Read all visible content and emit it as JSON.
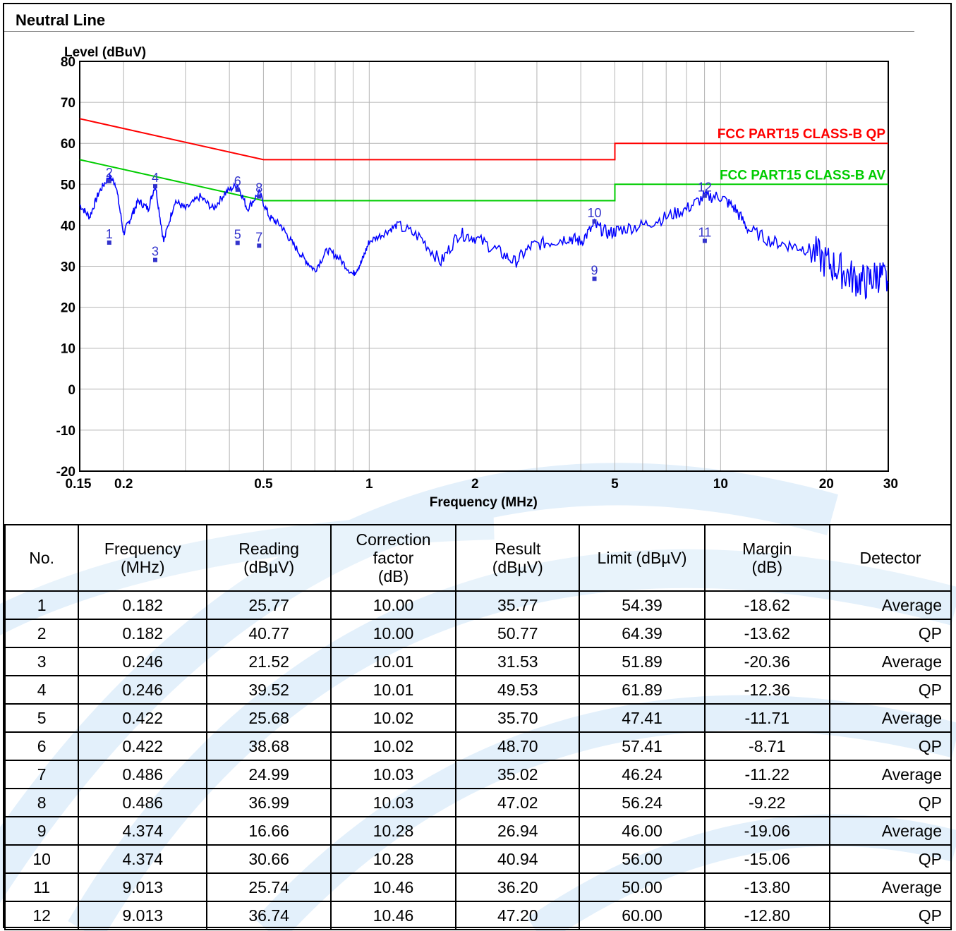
{
  "header": {
    "title": "Neutral Line"
  },
  "chart_data": {
    "type": "line",
    "title": "",
    "ylabel": "Level (dBuV)",
    "xlabel": "Frequency (MHz)",
    "xscale": "log",
    "xlim": [
      0.15,
      30
    ],
    "ylim": [
      -20,
      80
    ],
    "xticks": [
      0.15,
      0.2,
      0.5,
      1,
      2,
      5,
      10,
      20,
      30
    ],
    "xtick_labels": [
      "0.15",
      "0.2",
      "0.5",
      "1",
      "2",
      "5",
      "10",
      "20",
      "30"
    ],
    "yticks": [
      80,
      70,
      60,
      50,
      40,
      30,
      20,
      10,
      0,
      -10,
      -20
    ],
    "ytick_labels": [
      "80",
      "70",
      "60",
      "50",
      "40",
      "30",
      "20",
      "10",
      "0",
      "-10",
      "-20"
    ],
    "grid": true,
    "colors": {
      "qp_limit": "#ff0000",
      "av_limit": "#00cc00",
      "trace": "#0000ff",
      "markers": "#3333cc"
    },
    "series": [
      {
        "name": "FCC PART15 CLASS-B QP",
        "x": [
          0.15,
          0.5,
          0.5,
          5,
          5,
          30
        ],
        "y": [
          66,
          56,
          56,
          56,
          60,
          60
        ]
      },
      {
        "name": "FCC PART15 CLASS-B AV",
        "x": [
          0.15,
          0.5,
          0.5,
          5,
          5,
          30
        ],
        "y": [
          56,
          46,
          46,
          46,
          50,
          50
        ]
      },
      {
        "name": "",
        "x": [
          0.15,
          0.16,
          0.17,
          0.182,
          0.19,
          0.2,
          0.21,
          0.22,
          0.235,
          0.246,
          0.26,
          0.28,
          0.3,
          0.33,
          0.36,
          0.39,
          0.422,
          0.45,
          0.486,
          0.52,
          0.56,
          0.6,
          0.65,
          0.7,
          0.76,
          0.82,
          0.9,
          0.95,
          1.0,
          1.1,
          1.2,
          1.4,
          1.6,
          1.8,
          2.0,
          2.3,
          2.6,
          2.9,
          3.3,
          3.7,
          4.0,
          4.374,
          4.8,
          5.2,
          6.0,
          7.0,
          8.0,
          9.013,
          10.0,
          11.0,
          12.0,
          14.0,
          16.0,
          18.0,
          20.0,
          22.0,
          24.0,
          26.0,
          28.0,
          30.0
        ],
        "y": [
          45,
          42,
          48,
          52,
          50,
          38,
          42,
          46,
          44,
          50,
          36,
          46,
          44,
          47,
          44,
          48,
          50,
          44,
          48,
          42,
          40,
          36,
          32,
          29,
          34,
          32,
          28,
          31,
          36,
          38,
          40,
          37,
          31,
          38,
          37,
          34,
          31,
          35,
          36,
          37,
          36,
          40,
          38,
          39,
          40,
          42,
          44,
          47,
          47,
          44,
          39,
          36,
          35,
          34,
          31,
          29,
          27,
          26,
          28,
          26
        ]
      }
    ],
    "markers": [
      {
        "label": "1",
        "x": 0.182,
        "y": 35.77
      },
      {
        "label": "2",
        "x": 0.182,
        "y": 50.77
      },
      {
        "label": "3",
        "x": 0.246,
        "y": 31.53
      },
      {
        "label": "4",
        "x": 0.246,
        "y": 49.53
      },
      {
        "label": "5",
        "x": 0.422,
        "y": 35.7
      },
      {
        "label": "6",
        "x": 0.422,
        "y": 48.7
      },
      {
        "label": "7",
        "x": 0.486,
        "y": 35.02
      },
      {
        "label": "8",
        "x": 0.486,
        "y": 47.02
      },
      {
        "label": "9",
        "x": 4.374,
        "y": 26.94
      },
      {
        "label": "10",
        "x": 4.374,
        "y": 40.94
      },
      {
        "label": "11",
        "x": 9.013,
        "y": 36.2
      },
      {
        "label": "12",
        "x": 9.013,
        "y": 47.2
      }
    ]
  },
  "table": {
    "headers": [
      [
        "No."
      ],
      [
        "Frequency",
        "(MHz)"
      ],
      [
        "Reading",
        "(dBµV)"
      ],
      [
        "Correction",
        "factor",
        "(dB)"
      ],
      [
        "Result",
        "(dBµV)"
      ],
      [
        "Limit (dBµV)"
      ],
      [
        "Margin",
        "(dB)"
      ],
      [
        "Detector"
      ]
    ],
    "rows": [
      [
        "1",
        "0.182",
        "25.77",
        "10.00",
        "35.77",
        "54.39",
        "-18.62",
        "Average"
      ],
      [
        "2",
        "0.182",
        "40.77",
        "10.00",
        "50.77",
        "64.39",
        "-13.62",
        "QP"
      ],
      [
        "3",
        "0.246",
        "21.52",
        "10.01",
        "31.53",
        "51.89",
        "-20.36",
        "Average"
      ],
      [
        "4",
        "0.246",
        "39.52",
        "10.01",
        "49.53",
        "61.89",
        "-12.36",
        "QP"
      ],
      [
        "5",
        "0.422",
        "25.68",
        "10.02",
        "35.70",
        "47.41",
        "-11.71",
        "Average"
      ],
      [
        "6",
        "0.422",
        "38.68",
        "10.02",
        "48.70",
        "57.41",
        "-8.71",
        "QP"
      ],
      [
        "7",
        "0.486",
        "24.99",
        "10.03",
        "35.02",
        "46.24",
        "-11.22",
        "Average"
      ],
      [
        "8",
        "0.486",
        "36.99",
        "10.03",
        "47.02",
        "56.24",
        "-9.22",
        "QP"
      ],
      [
        "9",
        "4.374",
        "16.66",
        "10.28",
        "26.94",
        "46.00",
        "-19.06",
        "Average"
      ],
      [
        "10",
        "4.374",
        "30.66",
        "10.28",
        "40.94",
        "56.00",
        "-15.06",
        "QP"
      ],
      [
        "11",
        "9.013",
        "25.74",
        "10.46",
        "36.20",
        "50.00",
        "-13.80",
        "Average"
      ],
      [
        "12",
        "9.013",
        "36.74",
        "10.46",
        "47.20",
        "60.00",
        "-12.80",
        "QP"
      ]
    ]
  }
}
